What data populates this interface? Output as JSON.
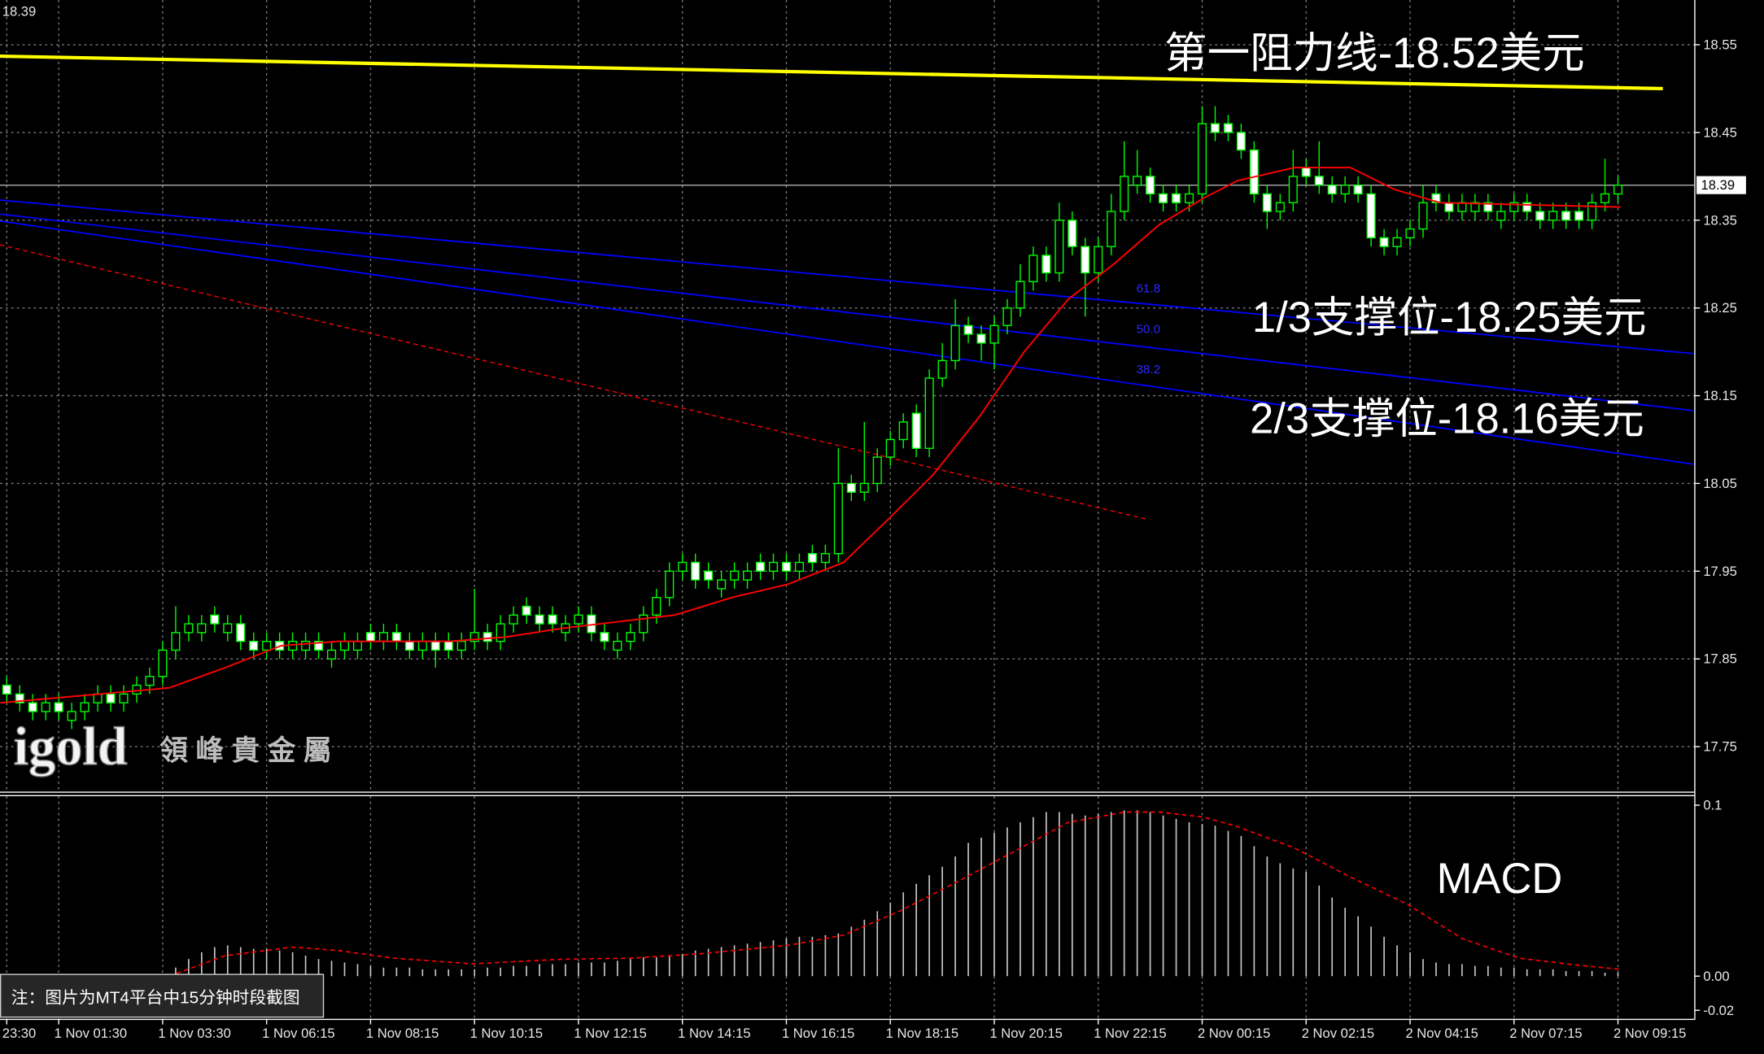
{
  "chart_data": [
    {
      "type": "candlestick",
      "last_price": 18.39,
      "categories": [
        "23:30",
        null,
        null,
        null,
        "1 Nov 01:30",
        null,
        null,
        null,
        null,
        null,
        null,
        null,
        "1 Nov 03:30",
        null,
        null,
        null,
        null,
        null,
        null,
        null,
        "1 Nov 06:15",
        null,
        null,
        null,
        null,
        null,
        null,
        null,
        "1 Nov 08:15",
        null,
        null,
        null,
        null,
        null,
        null,
        null,
        "1 Nov 10:15",
        null,
        null,
        null,
        null,
        null,
        null,
        null,
        "1 Nov 12:15",
        null,
        null,
        null,
        null,
        null,
        null,
        null,
        "1 Nov 14:15",
        null,
        null,
        null,
        null,
        null,
        null,
        null,
        "1 Nov 16:15",
        null,
        null,
        null,
        null,
        null,
        null,
        null,
        "1 Nov 18:15",
        null,
        null,
        null,
        null,
        null,
        null,
        null,
        "1 Nov 20:15",
        null,
        null,
        null,
        null,
        null,
        null,
        null,
        "1 Nov 22:15",
        null,
        null,
        null,
        null,
        null,
        null,
        null,
        "2 Nov 00:15",
        null,
        null,
        null,
        null,
        null,
        null,
        null,
        "2 Nov 02:15",
        null,
        null,
        null,
        null,
        null,
        null,
        null,
        "2 Nov 04:15",
        null,
        null,
        null,
        null,
        null,
        null,
        null,
        "2 Nov 07:15",
        null,
        null,
        null,
        null,
        null,
        null,
        null,
        "2 Nov 09:15"
      ],
      "open": [
        17.82,
        17.81,
        17.8,
        17.79,
        17.8,
        17.78,
        17.79,
        17.8,
        17.81,
        17.8,
        17.81,
        17.82,
        17.83,
        17.86,
        17.88,
        17.88,
        17.9,
        17.88,
        17.89,
        17.87,
        17.86,
        17.87,
        17.86,
        17.86,
        17.87,
        17.85,
        17.86,
        17.86,
        17.88,
        17.87,
        17.88,
        17.87,
        17.86,
        17.87,
        17.87,
        17.86,
        17.87,
        17.88,
        17.87,
        17.89,
        17.91,
        17.9,
        17.9,
        17.88,
        17.89,
        17.9,
        17.88,
        17.86,
        17.87,
        17.88,
        17.9,
        17.92,
        17.95,
        17.96,
        17.95,
        17.93,
        17.94,
        17.94,
        17.96,
        17.95,
        17.96,
        17.95,
        17.97,
        17.96,
        17.97,
        18.05,
        18.04,
        18.05,
        18.08,
        18.1,
        18.13,
        18.09,
        18.17,
        18.19,
        18.23,
        18.22,
        18.21,
        18.23,
        18.25,
        18.28,
        18.31,
        18.29,
        18.35,
        18.32,
        18.29,
        18.32,
        18.36,
        18.39,
        18.4,
        18.38,
        18.38,
        18.37,
        18.38,
        18.46,
        18.46,
        18.45,
        18.43,
        18.38,
        18.36,
        18.37,
        18.41,
        18.4,
        18.39,
        18.38,
        18.39,
        18.38,
        18.33,
        18.32,
        18.33,
        18.34,
        18.38,
        18.37,
        18.36,
        18.36,
        18.37,
        18.35,
        18.36,
        18.37,
        18.36,
        18.35,
        18.36,
        18.36,
        18.35,
        18.37,
        18.38
      ],
      "high": [
        17.83,
        17.82,
        17.81,
        17.81,
        17.81,
        17.8,
        17.81,
        17.82,
        17.82,
        17.82,
        17.83,
        17.84,
        17.87,
        17.91,
        17.9,
        17.9,
        17.91,
        17.9,
        17.9,
        17.88,
        17.88,
        17.88,
        17.88,
        17.88,
        17.88,
        17.87,
        17.88,
        17.88,
        17.89,
        17.89,
        17.89,
        17.88,
        17.88,
        17.88,
        17.88,
        17.88,
        17.93,
        17.89,
        17.9,
        17.91,
        17.92,
        17.91,
        17.91,
        17.9,
        17.91,
        17.91,
        17.89,
        17.88,
        17.89,
        17.91,
        17.93,
        17.96,
        17.97,
        17.97,
        17.96,
        17.95,
        17.96,
        17.96,
        17.97,
        17.97,
        17.97,
        17.97,
        17.98,
        17.98,
        18.09,
        18.06,
        18.12,
        18.09,
        18.11,
        18.13,
        18.14,
        18.18,
        18.21,
        18.26,
        18.24,
        18.23,
        18.24,
        18.26,
        18.3,
        18.32,
        18.32,
        18.37,
        18.36,
        18.33,
        18.33,
        18.38,
        18.44,
        18.43,
        18.41,
        18.39,
        18.39,
        18.39,
        18.48,
        18.48,
        18.47,
        18.46,
        18.44,
        18.39,
        18.38,
        18.43,
        18.42,
        18.44,
        18.4,
        18.4,
        18.4,
        18.39,
        18.34,
        18.34,
        18.35,
        18.39,
        18.39,
        18.38,
        18.38,
        18.38,
        18.38,
        18.37,
        18.38,
        18.38,
        18.37,
        18.37,
        18.37,
        18.37,
        18.38,
        18.42,
        18.4
      ],
      "low": [
        17.8,
        17.79,
        17.78,
        17.78,
        17.78,
        17.77,
        17.78,
        17.79,
        17.79,
        17.79,
        17.8,
        17.81,
        17.82,
        17.85,
        17.87,
        17.87,
        17.88,
        17.87,
        17.86,
        17.85,
        17.85,
        17.85,
        17.85,
        17.85,
        17.85,
        17.84,
        17.85,
        17.85,
        17.86,
        17.86,
        17.86,
        17.85,
        17.85,
        17.84,
        17.85,
        17.85,
        17.86,
        17.86,
        17.86,
        17.88,
        17.89,
        17.88,
        17.88,
        17.87,
        17.88,
        17.87,
        17.86,
        17.85,
        17.86,
        17.87,
        17.89,
        17.91,
        17.94,
        17.93,
        17.93,
        17.92,
        17.93,
        17.93,
        17.94,
        17.94,
        17.94,
        17.94,
        17.95,
        17.95,
        17.96,
        18.03,
        18.03,
        18.04,
        18.07,
        18.09,
        18.08,
        18.08,
        18.16,
        18.18,
        18.21,
        18.19,
        18.18,
        18.22,
        18.24,
        18.27,
        18.28,
        18.28,
        18.31,
        18.24,
        18.28,
        18.31,
        18.35,
        18.38,
        18.37,
        18.36,
        18.36,
        18.36,
        18.37,
        18.44,
        18.44,
        18.42,
        18.37,
        18.34,
        18.35,
        18.36,
        18.39,
        18.38,
        18.37,
        18.37,
        18.37,
        18.32,
        18.31,
        18.31,
        18.32,
        18.33,
        18.36,
        18.35,
        18.35,
        18.35,
        18.35,
        18.34,
        18.35,
        18.35,
        18.34,
        18.34,
        18.34,
        18.34,
        18.34,
        18.36,
        18.37
      ],
      "close": [
        17.81,
        17.8,
        17.79,
        17.8,
        17.79,
        17.79,
        17.8,
        17.81,
        17.8,
        17.81,
        17.82,
        17.83,
        17.86,
        17.88,
        17.89,
        17.89,
        17.89,
        17.89,
        17.87,
        17.86,
        17.87,
        17.86,
        17.87,
        17.87,
        17.86,
        17.86,
        17.87,
        17.87,
        17.87,
        17.88,
        17.87,
        17.86,
        17.87,
        17.86,
        17.86,
        17.87,
        17.88,
        17.87,
        17.89,
        17.9,
        17.9,
        17.89,
        17.89,
        17.89,
        17.9,
        17.88,
        17.87,
        17.87,
        17.88,
        17.9,
        17.92,
        17.95,
        17.96,
        17.94,
        17.94,
        17.94,
        17.95,
        17.95,
        17.95,
        17.96,
        17.95,
        17.96,
        17.96,
        17.97,
        18.05,
        18.04,
        18.05,
        18.08,
        18.1,
        18.12,
        18.09,
        18.17,
        18.19,
        18.23,
        18.22,
        18.21,
        18.23,
        18.25,
        18.28,
        18.31,
        18.29,
        18.35,
        18.32,
        18.29,
        18.32,
        18.36,
        18.4,
        18.4,
        18.38,
        18.37,
        18.37,
        18.38,
        18.46,
        18.45,
        18.45,
        18.43,
        18.38,
        18.36,
        18.37,
        18.4,
        18.4,
        18.39,
        18.38,
        18.39,
        18.38,
        18.33,
        18.32,
        18.33,
        18.34,
        18.37,
        18.37,
        18.36,
        18.37,
        18.37,
        18.36,
        18.36,
        18.37,
        18.36,
        18.35,
        18.36,
        18.35,
        18.35,
        18.37,
        18.38,
        18.39
      ],
      "candle_color": "#00ff00",
      "bull_fill": "#000000",
      "bear_fill": "#ffffff",
      "ma": {
        "color": "#ff0000",
        "x": [
          -0.5,
          12.5,
          16.8,
          21.1,
          25.5,
          34.1,
          38.4,
          42.8,
          51.4,
          55.8,
          60.1,
          64.4,
          67.9,
          71.3,
          74.8,
          78.3,
          81.7,
          85.2,
          88.7,
          92.1,
          94.7,
          99.1,
          103.4,
          106.8,
          110.3,
          124.2
        ],
        "values": [
          17.8,
          17.817,
          17.84,
          17.865,
          17.87,
          17.87,
          17.875,
          17.885,
          17.9,
          17.92,
          17.935,
          17.96,
          18.01,
          18.06,
          18.125,
          18.2,
          18.26,
          18.3,
          18.345,
          18.375,
          18.395,
          18.41,
          18.41,
          18.385,
          18.37,
          18.365
        ]
      },
      "lines": [
        {
          "color": "#ffff00",
          "width": 3,
          "dashed": false,
          "x": [
            -0.52,
            127.45
          ],
          "values": [
            18.537,
            18.5
          ]
        },
        {
          "color": "#0000ff",
          "width": 1.3,
          "dashed": false,
          "x": [
            -0.52,
            129.8
          ],
          "values": [
            18.373,
            18.198
          ]
        },
        {
          "color": "#0000ff",
          "width": 1.3,
          "dashed": false,
          "x": [
            -0.52,
            129.8
          ],
          "values": [
            18.357,
            18.133
          ]
        },
        {
          "color": "#0000ff",
          "width": 1.3,
          "dashed": false,
          "x": [
            -0.52,
            129.8
          ],
          "values": [
            18.349,
            18.072
          ]
        },
        {
          "color": "#ff0000",
          "width": 1,
          "dashed": true,
          "x": [
            -0.52,
            87.8
          ],
          "values": [
            18.322,
            18.009
          ]
        }
      ],
      "fib_labels": [
        "61.8",
        "50.0",
        "38.2"
      ],
      "annotations": [
        "第一阻力线-18.52美元",
        "1/3支撑位-18.25美元",
        "2/3支撑位-18.16美元"
      ],
      "watermark": "igold",
      "watermark_sub": "領 峰 貴 金 屬",
      "note": "注：图片为MT4平台中15分钟时段截图",
      "ylim": [
        17.7,
        18.601
      ],
      "yticks": [
        17.75,
        17.85,
        17.95,
        18.05,
        18.15,
        18.25,
        18.35,
        18.45,
        18.55
      ],
      "grid": true,
      "background": "#000000",
      "price_line_color": "#b0b0b0"
    },
    {
      "type": "macd",
      "label": "MACD",
      "color": "#c8c8c8",
      "values": [
        null,
        null,
        null,
        null,
        null,
        null,
        null,
        null,
        null,
        null,
        null,
        null,
        null,
        0.005,
        0.01,
        0.014,
        0.017,
        0.018,
        0.017,
        0.016,
        0.016,
        0.015,
        0.014,
        0.012,
        0.01,
        0.009,
        0.008,
        0.007,
        0.006,
        0.005,
        0.005,
        0.005,
        0.004,
        0.004,
        0.004,
        0.004,
        0.004,
        0.005,
        0.005,
        0.006,
        0.006,
        0.007,
        0.007,
        0.007,
        0.008,
        0.008,
        0.008,
        0.009,
        0.01,
        0.011,
        0.011,
        0.012,
        0.013,
        0.015,
        0.016,
        0.017,
        0.018,
        0.019,
        0.02,
        0.021,
        0.022,
        0.023,
        0.023,
        0.024,
        0.025,
        0.029,
        0.033,
        0.038,
        0.043,
        0.049,
        0.054,
        0.059,
        0.064,
        0.07,
        0.078,
        0.081,
        0.084,
        0.087,
        0.09,
        0.093,
        0.096,
        0.096,
        0.095,
        0.094,
        0.095,
        0.096,
        0.097,
        0.097,
        0.096,
        0.094,
        0.092,
        0.09,
        0.089,
        0.088,
        0.085,
        0.082,
        0.076,
        0.07,
        0.066,
        0.063,
        0.061,
        0.053,
        0.046,
        0.04,
        0.035,
        0.029,
        0.023,
        0.018,
        0.014,
        0.01,
        0.008,
        0.007,
        0.007,
        0.006,
        0.006,
        0.005,
        0.005,
        0.004,
        0.004,
        0.004,
        0.003,
        0.003,
        0.003,
        0.002,
        0.002
      ],
      "signal": {
        "color": "#ff0000",
        "x": [
          12.5,
          16.8,
          22,
          25.5,
          29.8,
          35.8,
          42.8,
          48,
          53.2,
          60.1,
          64.4,
          68.7,
          73.1,
          77.4,
          81.7,
          86.1,
          88.7,
          92.1,
          94.7,
          99.1,
          103.4,
          107.8,
          112,
          116.4,
          120.7,
          124.2
        ],
        "values": [
          0,
          0.012,
          0.017,
          0.015,
          0.0105,
          0.0072,
          0.0099,
          0.0105,
          0.013,
          0.018,
          0.024,
          0.038,
          0.055,
          0.0724,
          0.09,
          0.096,
          0.096,
          0.093,
          0.0875,
          0.075,
          0.058,
          0.042,
          0.022,
          0.0105,
          0.0066,
          0.004
        ]
      },
      "ylim": [
        -0.0243,
        0.1053
      ],
      "yticks": [
        {
          "value": 0.1,
          "label": "0.1"
        },
        {
          "value": 0,
          "label": "0.00"
        },
        -0.02
      ]
    }
  ]
}
